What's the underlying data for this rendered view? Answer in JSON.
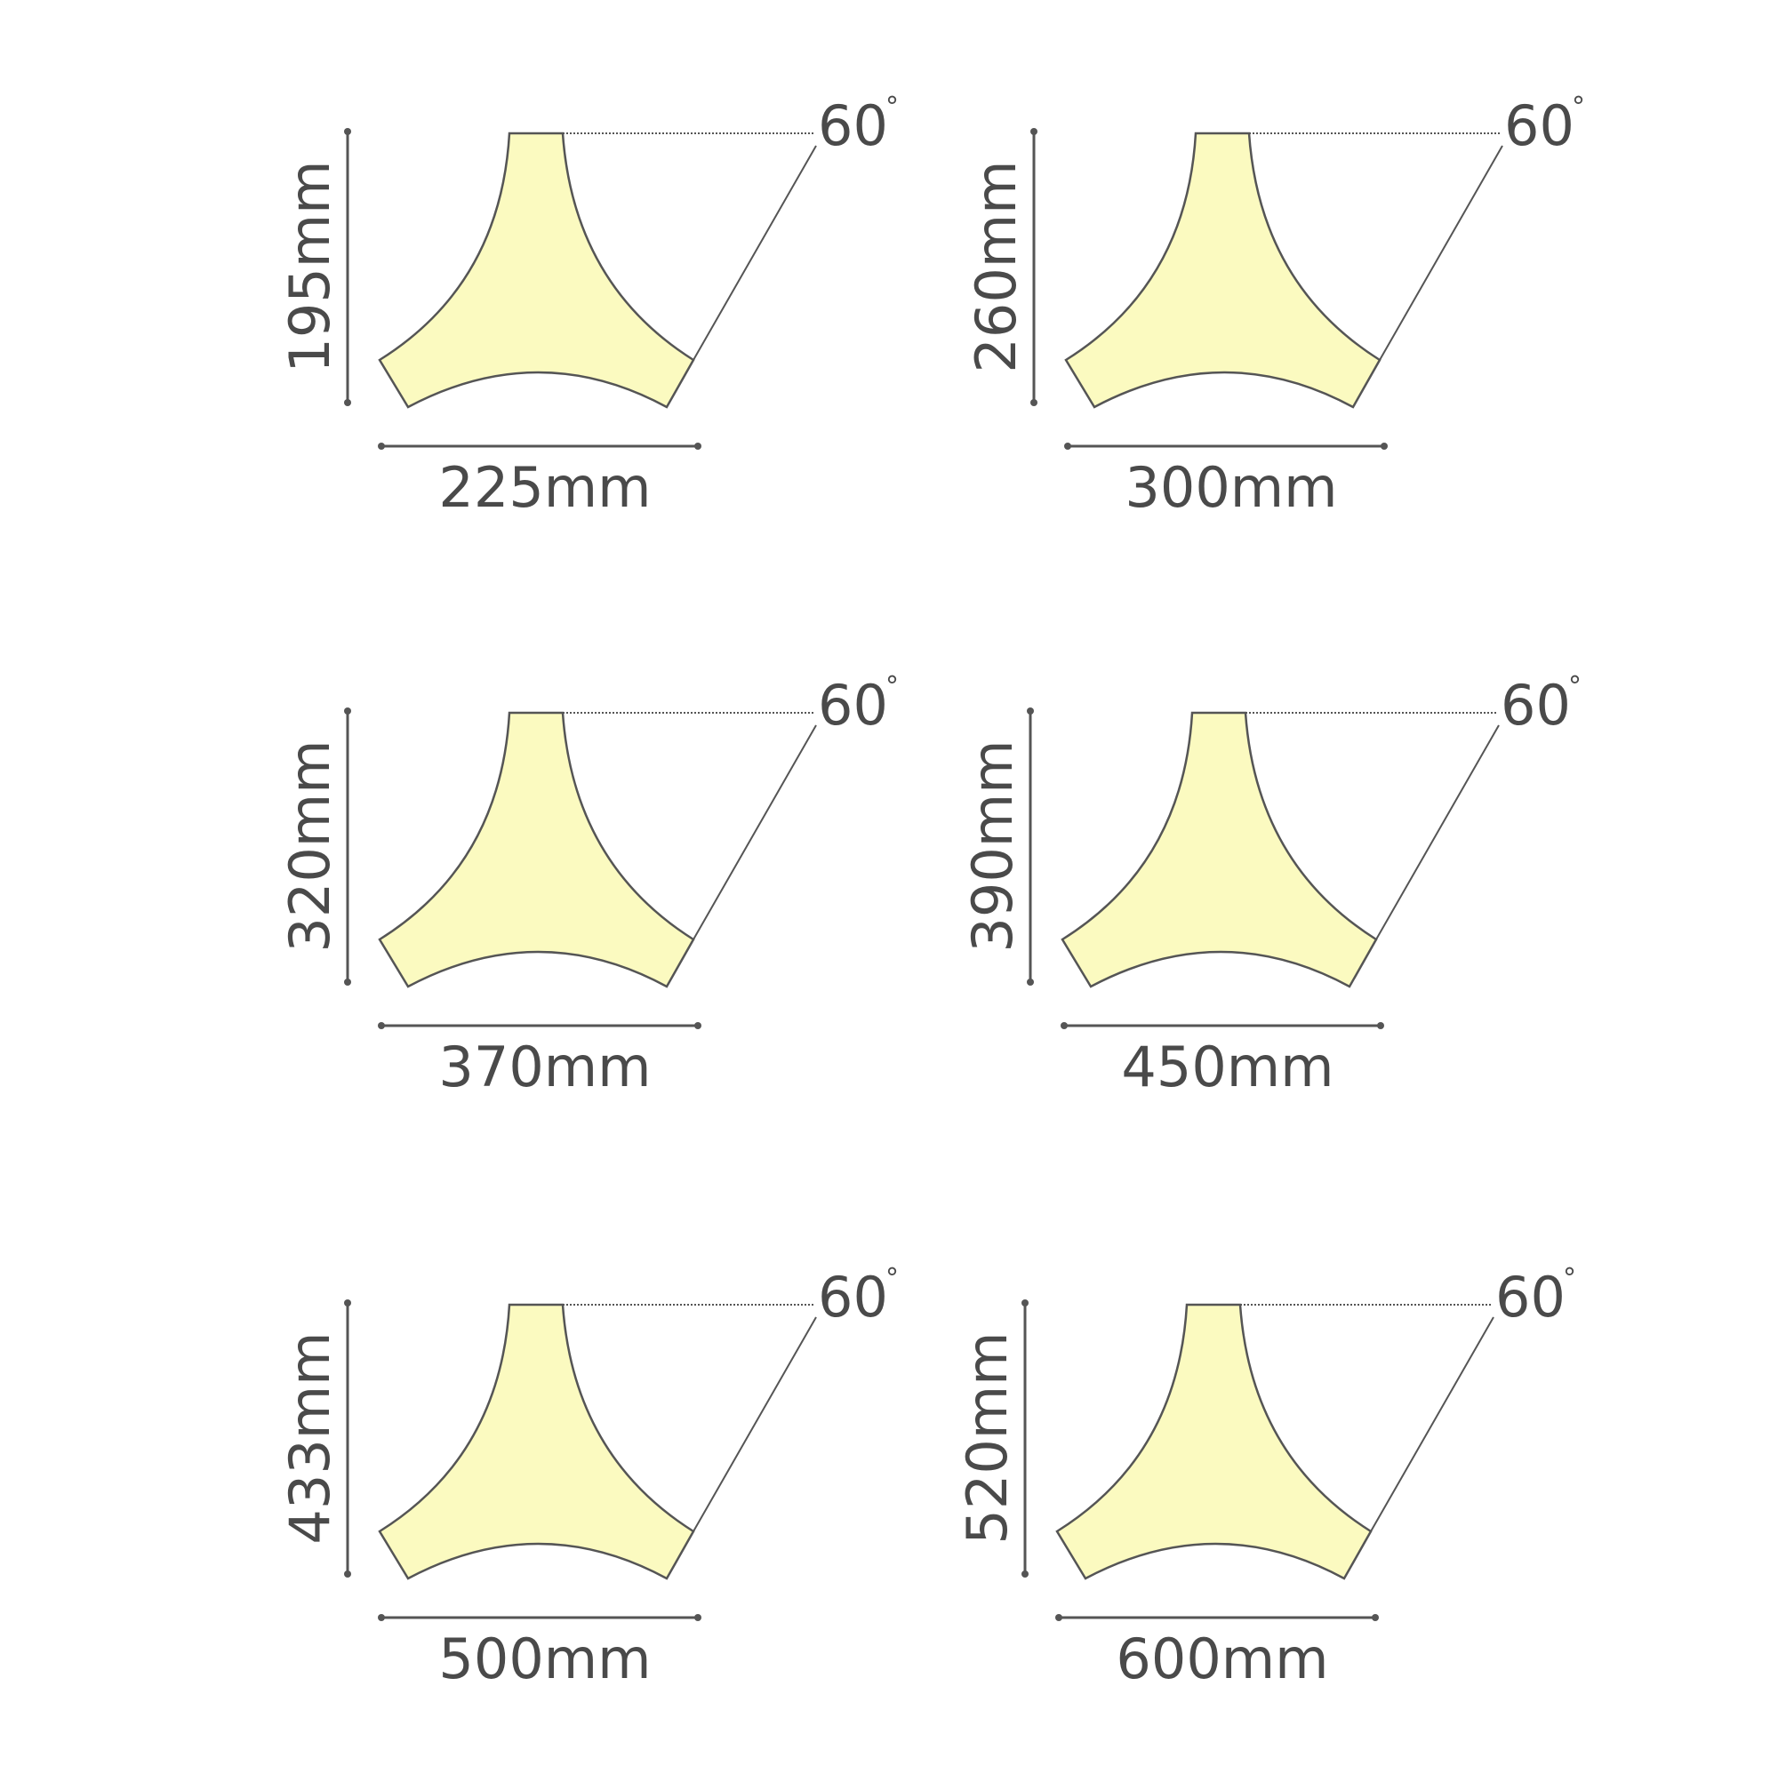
{
  "colors": {
    "shape_fill": "#fbfac0",
    "shape_stroke": "#555555",
    "dimension_line": "#555555",
    "text": "#4a4a4a",
    "background": "#ffffff"
  },
  "shapes": [
    {
      "height_label": "195mm",
      "width_label": "225mm",
      "angle_label": "60",
      "degree_symbol": "°"
    },
    {
      "height_label": "260mm",
      "width_label": "300mm",
      "angle_label": "60",
      "degree_symbol": "°"
    },
    {
      "height_label": "320mm",
      "width_label": "370mm",
      "angle_label": "60",
      "degree_symbol": "°"
    },
    {
      "height_label": "390mm",
      "width_label": "450mm",
      "angle_label": "60",
      "degree_symbol": "°"
    },
    {
      "height_label": "433mm",
      "width_label": "500mm",
      "angle_label": "60",
      "degree_symbol": "°"
    },
    {
      "height_label": "520mm",
      "width_label": "600mm",
      "angle_label": "60",
      "degree_symbol": "°"
    }
  ]
}
